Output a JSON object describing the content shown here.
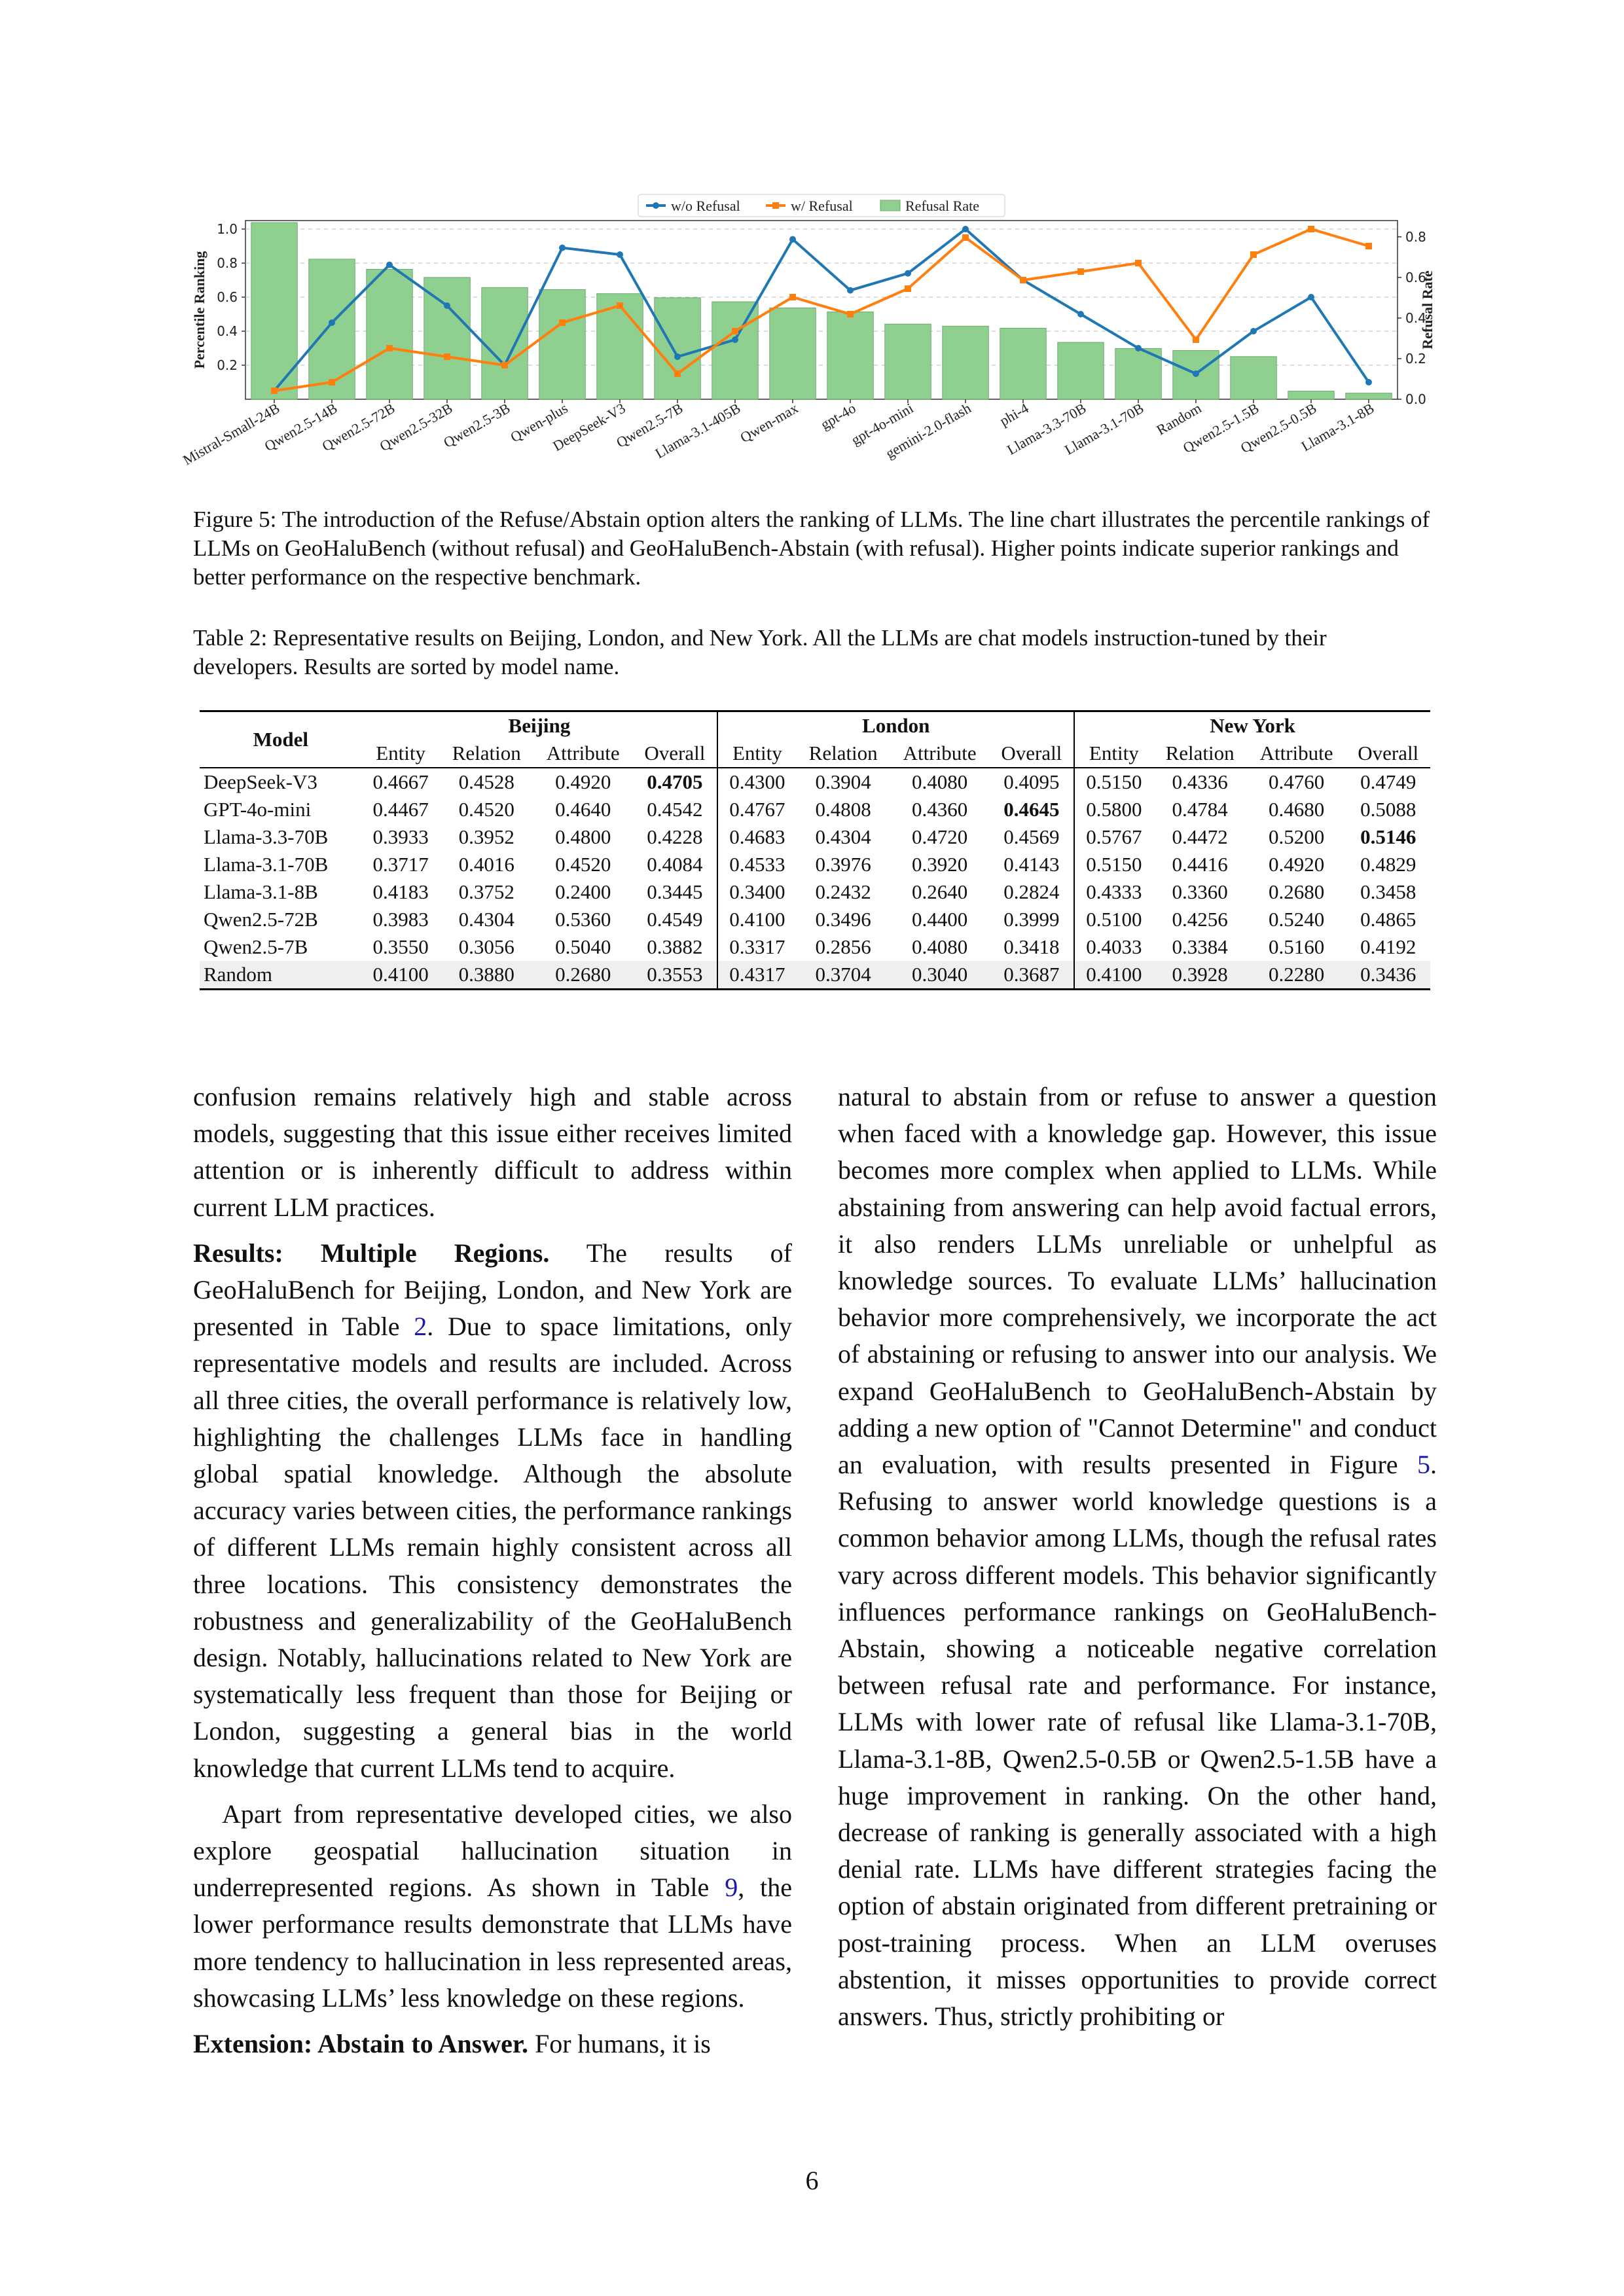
{
  "chart_data": {
    "type": "bar+line",
    "legend": [
      "w/o Refusal",
      "w/ Refusal",
      "Refusal Rate"
    ],
    "legend_position": "top-center",
    "ylabel_left": "Percentile Ranking",
    "ylabel_right": "Refusal Rate",
    "yticks_left": [
      "0.2",
      "0.4",
      "0.6",
      "0.8",
      "1.0"
    ],
    "yticks_right": [
      "0.0",
      "0.2",
      "0.4",
      "0.6",
      "0.8"
    ],
    "ylim_left": [
      0,
      1.05
    ],
    "ylim_right": [
      0,
      0.88
    ],
    "grid": "horizontal dashed",
    "colors": {
      "without": "#1f77b4",
      "with": "#ff7f0e",
      "bar": "#8fcf8f",
      "bar_edge": "#6aa86a"
    },
    "categories": [
      "Mistral-Small-24B",
      "Qwen2.5-14B",
      "Qwen2.5-72B",
      "Qwen2.5-32B",
      "Qwen2.5-3B",
      "Qwen-plus",
      "DeepSeek-V3",
      "Qwen2.5-7B",
      "Llama-3.1-405B",
      "Qwen-max",
      "gpt-4o",
      "gpt-4o-mini",
      "gemini-2.0-flash",
      "phi-4",
      "Llama-3.3-70B",
      "Llama-3.1-70B",
      "Random",
      "Qwen2.5-1.5B",
      "Qwen2.5-0.5B",
      "Llama-3.1-8B"
    ],
    "refusal_rate": [
      0.87,
      0.69,
      0.64,
      0.6,
      0.55,
      0.54,
      0.52,
      0.5,
      0.48,
      0.45,
      0.43,
      0.37,
      0.36,
      0.35,
      0.28,
      0.25,
      0.24,
      0.21,
      0.04,
      0.03
    ],
    "series": [
      {
        "name": "w/o Refusal",
        "values": [
          0.05,
          0.45,
          0.79,
          0.55,
          0.2,
          0.89,
          0.85,
          0.25,
          0.35,
          0.94,
          0.64,
          0.74,
          1.0,
          0.7,
          0.5,
          0.3,
          0.15,
          0.4,
          0.6,
          0.1
        ]
      },
      {
        "name": "w/ Refusal",
        "values": [
          0.05,
          0.1,
          0.3,
          0.25,
          0.2,
          0.45,
          0.55,
          0.15,
          0.4,
          0.6,
          0.5,
          0.65,
          0.95,
          0.7,
          0.75,
          0.8,
          0.35,
          0.85,
          1.0,
          0.9
        ]
      }
    ]
  },
  "figure_caption": "Figure 5: The introduction of the Refuse/Abstain option alters the ranking of LLMs. The line chart illustrates the percentile rankings of LLMs on GeoHaluBench (without refusal) and GeoHaluBench-Abstain (with refusal). Higher points indicate superior rankings and better performance on the respective benchmark.",
  "table_caption": "Table 2: Representative results on Beijing, London, and New York. All the LLMs are chat models instruction-tuned by their developers. Results are sorted by model name.",
  "table": {
    "model_header": "Model",
    "groups": [
      "Beijing",
      "London",
      "New York"
    ],
    "subheaders": [
      "Entity",
      "Relation",
      "Attribute",
      "Overall"
    ],
    "rows": [
      {
        "model": "DeepSeek-V3",
        "values": [
          "0.4667",
          "0.4528",
          "0.4920",
          "0.4705",
          "0.4300",
          "0.3904",
          "0.4080",
          "0.4095",
          "0.5150",
          "0.4336",
          "0.4760",
          "0.4749"
        ],
        "bold": [
          3
        ]
      },
      {
        "model": "GPT-4o-mini",
        "values": [
          "0.4467",
          "0.4520",
          "0.4640",
          "0.4542",
          "0.4767",
          "0.4808",
          "0.4360",
          "0.4645",
          "0.5800",
          "0.4784",
          "0.4680",
          "0.5088"
        ],
        "bold": [
          7
        ]
      },
      {
        "model": "Llama-3.3-70B",
        "values": [
          "0.3933",
          "0.3952",
          "0.4800",
          "0.4228",
          "0.4683",
          "0.4304",
          "0.4720",
          "0.4569",
          "0.5767",
          "0.4472",
          "0.5200",
          "0.5146"
        ],
        "bold": [
          11
        ]
      },
      {
        "model": "Llama-3.1-70B",
        "values": [
          "0.3717",
          "0.4016",
          "0.4520",
          "0.4084",
          "0.4533",
          "0.3976",
          "0.3920",
          "0.4143",
          "0.5150",
          "0.4416",
          "0.4920",
          "0.4829"
        ],
        "bold": []
      },
      {
        "model": "Llama-3.1-8B",
        "values": [
          "0.4183",
          "0.3752",
          "0.2400",
          "0.3445",
          "0.3400",
          "0.2432",
          "0.2640",
          "0.2824",
          "0.4333",
          "0.3360",
          "0.2680",
          "0.3458"
        ],
        "bold": []
      },
      {
        "model": "Qwen2.5-72B",
        "values": [
          "0.3983",
          "0.4304",
          "0.5360",
          "0.4549",
          "0.4100",
          "0.3496",
          "0.4400",
          "0.3999",
          "0.5100",
          "0.4256",
          "0.5240",
          "0.4865"
        ],
        "bold": []
      },
      {
        "model": "Qwen2.5-7B",
        "values": [
          "0.3550",
          "0.3056",
          "0.5040",
          "0.3882",
          "0.3317",
          "0.2856",
          "0.4080",
          "0.3418",
          "0.4033",
          "0.3384",
          "0.5160",
          "0.4192"
        ],
        "bold": []
      },
      {
        "model": "Random",
        "values": [
          "0.4100",
          "0.3880",
          "0.2680",
          "0.3553",
          "0.4317",
          "0.3704",
          "0.3040",
          "0.3687",
          "0.4100",
          "0.3928",
          "0.2280",
          "0.3436"
        ],
        "bold": []
      }
    ]
  },
  "left_column": {
    "p1": "confusion remains relatively high and stable across models, suggesting that this issue either receives limited attention or is inherently difficult to address within current LLM practices.",
    "p2_heading": "Results: Multiple Regions.",
    "p2_a": " The results of GeoHaluBench for Beijing, London, and New York are presented in Table ",
    "p2_ref": "2",
    "p2_b": ". Due to space limitations, only representative models and results are included. Across all three cities, the overall performance is relatively low, highlighting the challenges LLMs face in handling global spatial knowledge. Although the absolute accuracy varies between cities, the performance rankings of different LLMs remain highly consistent across all three locations. This consistency demonstrates the robustness and generalizability of the GeoHaluBench design. Notably, hallucinations related to New York are systematically less frequent than those for Beijing or London, suggesting a general bias in the world knowledge that current LLMs tend to acquire.",
    "p3_a": "Apart from representative developed cities, we also explore geospatial hallucination situation in underrepresented regions. As shown in Table ",
    "p3_ref": "9",
    "p3_b": ", the lower performance results demonstrate that LLMs have more tendency to hallucination in less represented areas, showcasing LLMs’ less knowledge on these regions.",
    "p4_heading": "Extension: Abstain to Answer.",
    "p4_a": " For humans, it is"
  },
  "right_column": {
    "p1_a": "natural to abstain from or refuse to answer a question when faced with a knowledge gap. However, this issue becomes more complex when applied to LLMs. While abstaining from answering can help avoid factual errors, it also renders LLMs unreliable or unhelpful as knowledge sources. To evaluate LLMs’ hallucination behavior more comprehensively, we incorporate the act of abstaining or refusing to answer into our analysis. We expand GeoHaluBench to GeoHaluBench-Abstain by adding a new option of \"Cannot Determine\" and conduct an evaluation, with results presented in Figure ",
    "p1_ref": "5",
    "p1_b": ". Refusing to answer world knowledge questions is a common behavior among LLMs, though the refusal rates vary across different models. This behavior significantly influences performance rankings on GeoHaluBench-Abstain, showing a noticeable negative correlation between refusal rate and performance. For instance, LLMs with lower rate of refusal like Llama-3.1-70B, Llama-3.1-8B, Qwen2.5-0.5B or Qwen2.5-1.5B have a huge improvement in ranking. On the other hand, decrease of ranking is generally associated with a high denial rate. LLMs have different strategies facing the option of abstain originated from different pretraining or post-training process. When an LLM overuses abstention, it misses opportunities to provide correct answers. Thus, strictly prohibiting or"
  },
  "page_number": "6"
}
